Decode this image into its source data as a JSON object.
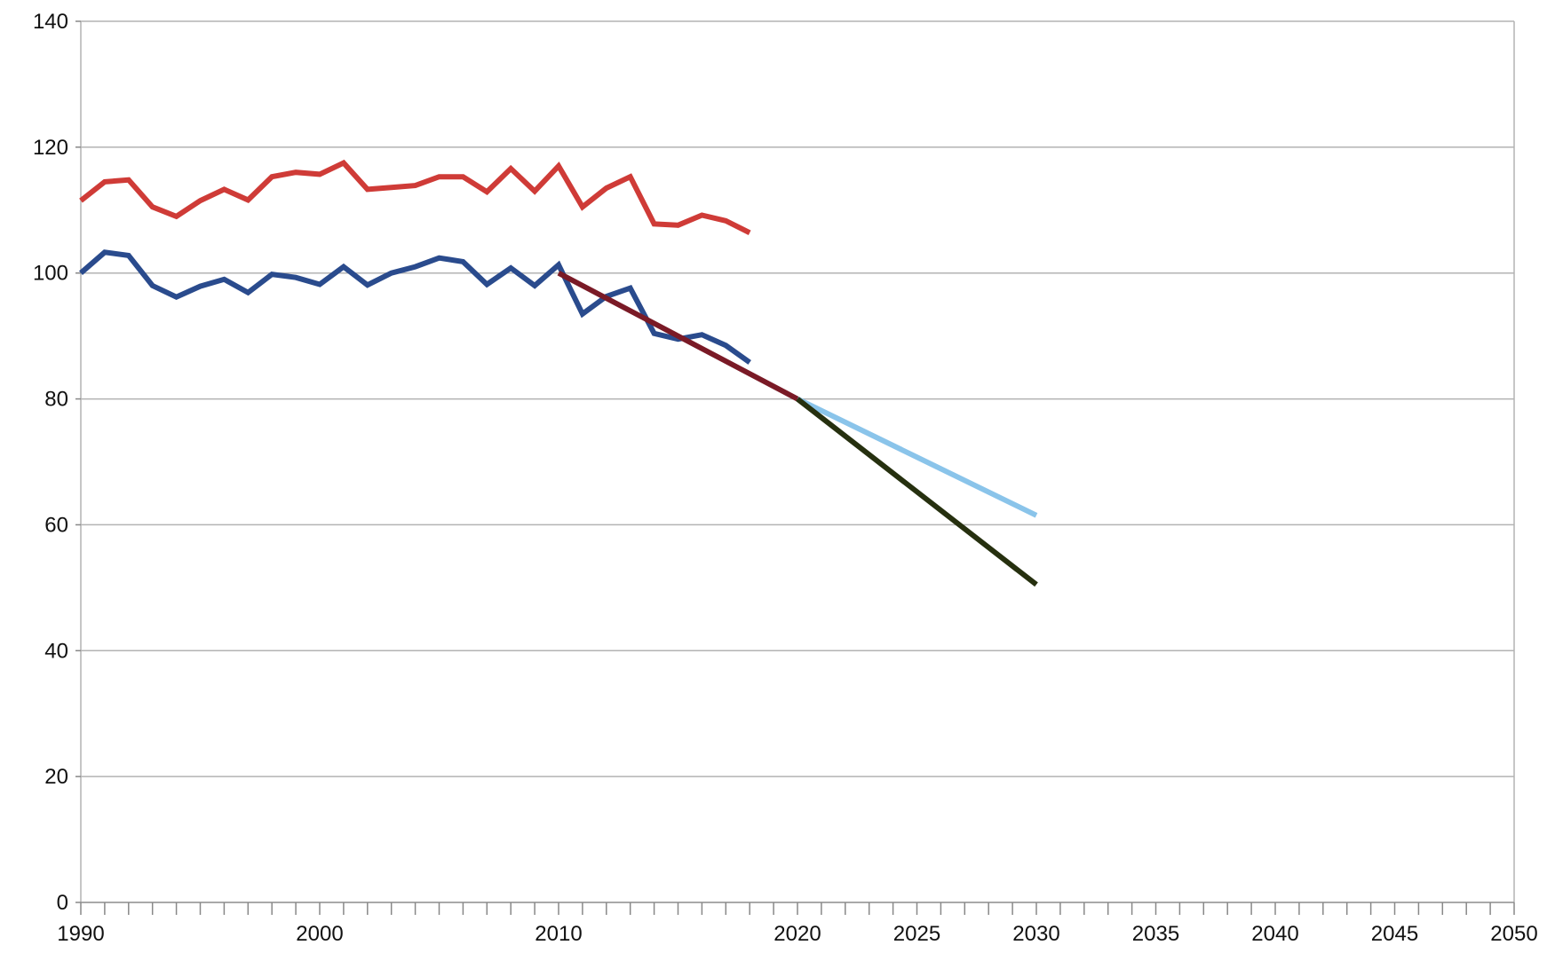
{
  "chart_data": {
    "type": "line",
    "title": "",
    "xlabel": "",
    "ylabel": "",
    "xlim": [
      1990,
      2050
    ],
    "ylim": [
      0,
      140
    ],
    "grid": true,
    "legend": "none",
    "x_tick_labels": [
      "1990",
      "2000",
      "2010",
      "2020",
      "2025",
      "2030",
      "2035",
      "2040",
      "2045",
      "2050"
    ],
    "y_tick_labels": [
      "0",
      "20",
      "40",
      "60",
      "80",
      "100",
      "120",
      "140"
    ],
    "colors": {
      "grid": "#b3b3b3",
      "axis": "#b3b3b3",
      "minor_tick": "#888888"
    },
    "series": [
      {
        "color": "#cf3b37",
        "x": [
          1990,
          1991,
          1992,
          1993,
          1994,
          1995,
          1996,
          1997,
          1998,
          1999,
          2000,
          2001,
          2002,
          2003,
          2004,
          2005,
          2006,
          2007,
          2008,
          2009,
          2010,
          2011,
          2012,
          2013,
          2014,
          2015,
          2016,
          2017,
          2018
        ],
        "values": [
          111.5,
          114.5,
          114.8,
          110.5,
          109.0,
          111.5,
          113.3,
          111.6,
          115.3,
          116.0,
          115.7,
          117.5,
          113.3,
          113.6,
          113.9,
          115.3,
          115.3,
          112.9,
          116.6,
          113.0,
          117.0,
          110.5,
          113.5,
          115.3,
          107.8,
          107.6,
          109.2,
          108.3,
          106.4
        ]
      },
      {
        "color": "#2a4b8d",
        "x": [
          1990,
          1991,
          1992,
          1993,
          1994,
          1995,
          1996,
          1997,
          1998,
          1999,
          2000,
          2001,
          2002,
          2003,
          2004,
          2005,
          2006,
          2007,
          2008,
          2009,
          2010,
          2011,
          2012,
          2013,
          2014,
          2015,
          2016,
          2017,
          2018
        ],
        "values": [
          100.0,
          103.3,
          102.8,
          98.0,
          96.2,
          97.9,
          99.0,
          96.9,
          99.8,
          99.3,
          98.2,
          101.0,
          98.1,
          100.0,
          101.0,
          102.4,
          101.8,
          98.2,
          100.8,
          98.0,
          101.3,
          93.5,
          96.3,
          97.6,
          90.4,
          89.5,
          90.2,
          88.5,
          85.8
        ]
      },
      {
        "color": "#7a1a26",
        "x": [
          2010,
          2020
        ],
        "values": [
          100,
          80
        ]
      },
      {
        "color": "#8ac4ea",
        "x": [
          2020,
          2030
        ],
        "values": [
          80,
          61.5
        ]
      },
      {
        "color": "#26300f",
        "x": [
          2020,
          2030
        ],
        "values": [
          80,
          50.5
        ]
      }
    ]
  }
}
